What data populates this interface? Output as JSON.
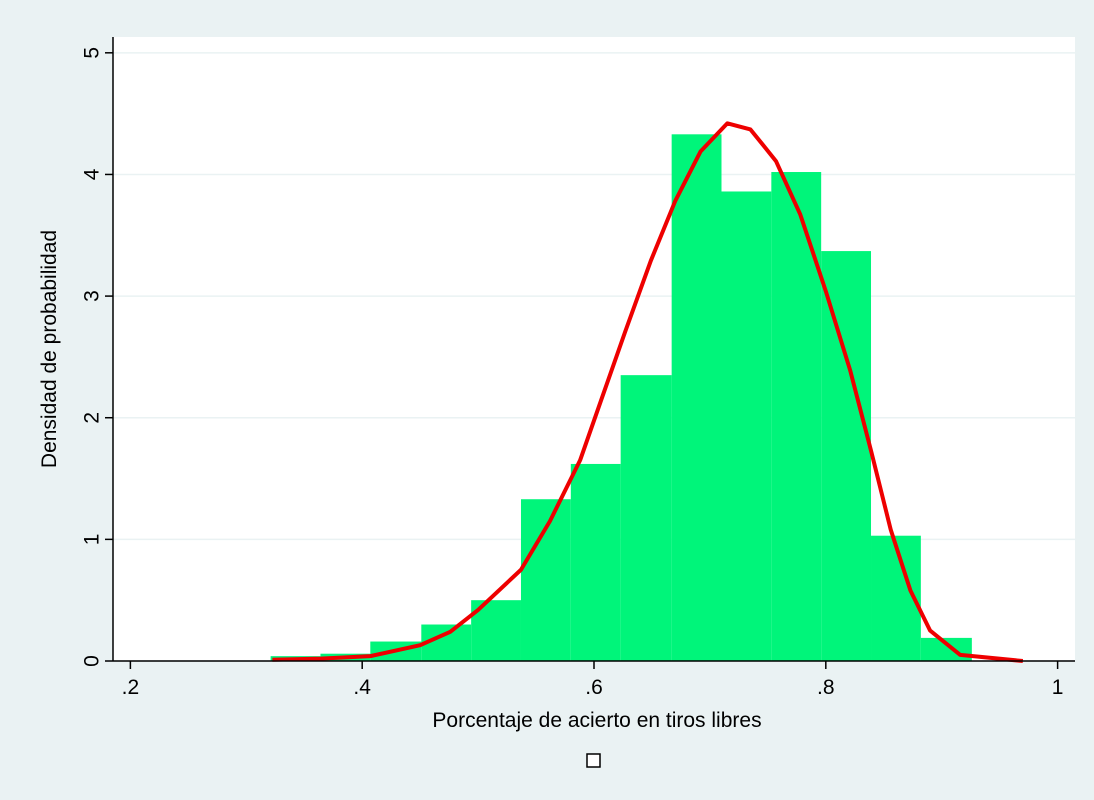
{
  "chart_data": {
    "type": "histogram",
    "x_label": "Porcentaje de acierto en tiros libres",
    "y_label": "Densidad de probabilidad",
    "bins": [
      0.321,
      0.364,
      0.407,
      0.451,
      0.494,
      0.537,
      0.58,
      0.623,
      0.667,
      0.71,
      0.753,
      0.796,
      0.839,
      0.882,
      0.926
    ],
    "values": [
      0.04,
      0.06,
      0.16,
      0.3,
      0.5,
      1.33,
      1.62,
      2.35,
      4.33,
      3.86,
      4.02,
      3.37,
      1.03,
      0.19
    ],
    "color": "#00f57a",
    "density": {
      "color": "#ee0000",
      "x": [
        0.3225,
        0.364,
        0.407,
        0.45,
        0.476,
        0.5,
        0.537,
        0.562,
        0.588,
        0.606,
        0.627,
        0.649,
        0.67,
        0.692,
        0.715,
        0.735,
        0.757,
        0.778,
        0.8,
        0.821,
        0.839,
        0.856,
        0.873,
        0.89,
        0.916,
        0.97
      ],
      "y": [
        0.01,
        0.02,
        0.04,
        0.13,
        0.24,
        0.42,
        0.75,
        1.15,
        1.65,
        2.14,
        2.71,
        3.29,
        3.78,
        4.19,
        4.42,
        4.37,
        4.11,
        3.67,
        3.04,
        2.39,
        1.73,
        1.08,
        0.58,
        0.25,
        0.05,
        0.0
      ]
    },
    "xlim": [
      0.185,
      1.015
    ],
    "ylim": [
      0,
      5.13
    ],
    "xticks": [
      {
        "value": 0.2,
        "label": ".2"
      },
      {
        "value": 0.4,
        "label": ".4"
      },
      {
        "value": 0.6,
        "label": ".6"
      },
      {
        "value": 0.8,
        "label": ".8"
      },
      1
    ],
    "yticks": [
      0,
      1,
      2,
      3,
      4,
      5
    ],
    "grid": true
  }
}
